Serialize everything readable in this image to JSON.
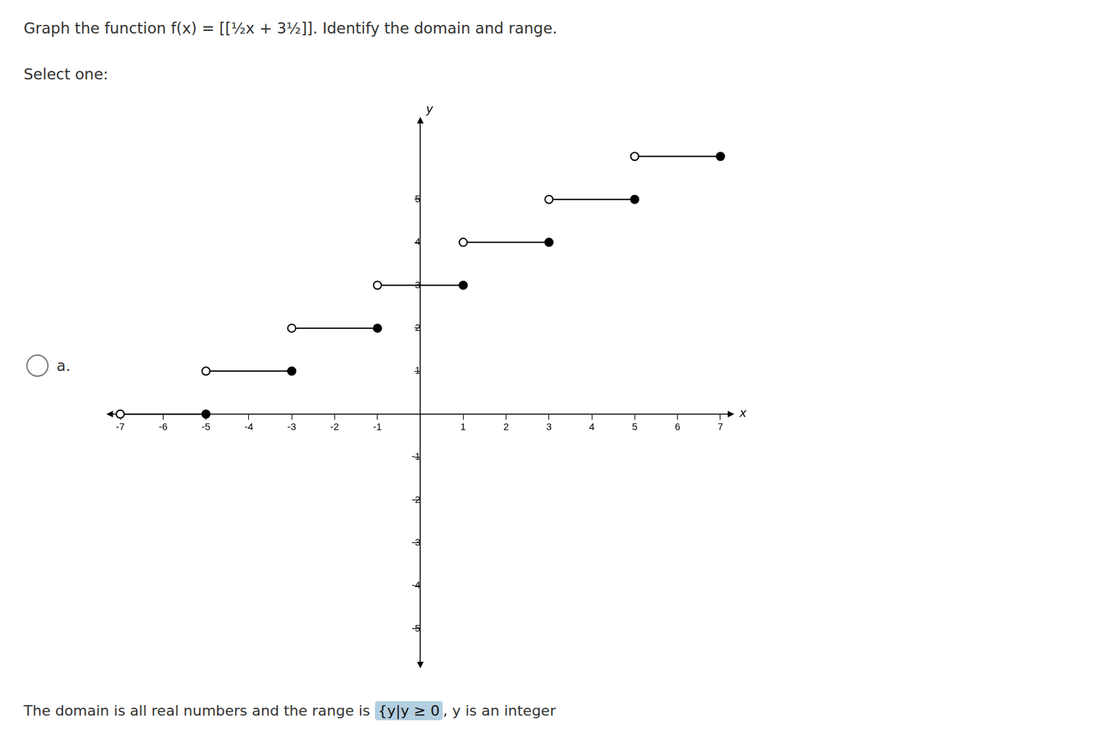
{
  "chart_data": {
    "type": "line",
    "title": "Graph the function f(x) = [[½x + 3½]]. Identify the domain and range.",
    "subtitle": "Select one:",
    "answer_label": "a.",
    "footer_pre": "The domain is all real numbers and the range is ",
    "footer_highlight": "{y|y ≥ 0",
    "footer_post": ", y is an integer",
    "xlabel": "x",
    "ylabel": "y",
    "color": "#000000",
    "segments": [
      {
        "y": 0,
        "x_left": -7,
        "x_right": -5
      },
      {
        "y": 1,
        "x_left": -5,
        "x_right": -3
      },
      {
        "y": 2,
        "x_left": -3,
        "x_right": -1
      },
      {
        "y": 3,
        "x_left": -1,
        "x_right": 1
      },
      {
        "y": 4,
        "x_left": 1,
        "x_right": 3
      },
      {
        "y": 5,
        "x_left": 3,
        "x_right": 5
      },
      {
        "y": 6,
        "x_left": 5,
        "x_right": 7
      }
    ],
    "xlim": [
      -7.2,
      7.2
    ],
    "xticks": [
      -7,
      -6,
      -5,
      -4,
      -3,
      -2,
      -1,
      1,
      2,
      3,
      4,
      5,
      6,
      7
    ],
    "ylim": [
      -5.8,
      6.8
    ],
    "yticks": [
      -5,
      -4,
      -3,
      -2,
      -1,
      1,
      2,
      3,
      4,
      5
    ],
    "grid": false
  }
}
